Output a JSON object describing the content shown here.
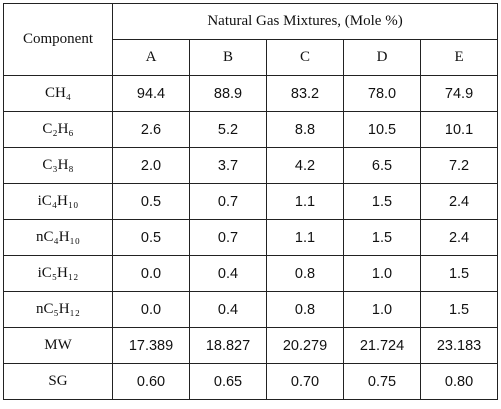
{
  "table": {
    "group_header": "Natural Gas Mixtures, (Mole %)",
    "component_header": "Component",
    "columns": [
      "A",
      "B",
      "C",
      "D",
      "E"
    ],
    "rows": [
      {
        "label": "CH₄",
        "values": [
          "94.4",
          "88.9",
          "83.2",
          "78.0",
          "74.9"
        ]
      },
      {
        "label": "C₂H₆",
        "values": [
          "2.6",
          "5.2",
          "8.8",
          "10.5",
          "10.1"
        ]
      },
      {
        "label": "C₃H₈",
        "values": [
          "2.0",
          "3.7",
          "4.2",
          "6.5",
          "7.2"
        ]
      },
      {
        "label": "iC₄H₁₀",
        "values": [
          "0.5",
          "0.7",
          "1.1",
          "1.5",
          "2.4"
        ]
      },
      {
        "label": "nC₄H₁₀",
        "values": [
          "0.5",
          "0.7",
          "1.1",
          "1.5",
          "2.4"
        ]
      },
      {
        "label": "iC₅H₁₂",
        "values": [
          "0.0",
          "0.4",
          "0.8",
          "1.0",
          "1.5"
        ]
      },
      {
        "label": "nC₅H₁₂",
        "values": [
          "0.0",
          "0.4",
          "0.8",
          "1.0",
          "1.5"
        ]
      },
      {
        "label": "MW",
        "values": [
          "17.389",
          "18.827",
          "20.279",
          "21.724",
          "23.183"
        ]
      },
      {
        "label": "SG",
        "values": [
          "0.60",
          "0.65",
          "0.70",
          "0.75",
          "0.80"
        ]
      }
    ]
  }
}
